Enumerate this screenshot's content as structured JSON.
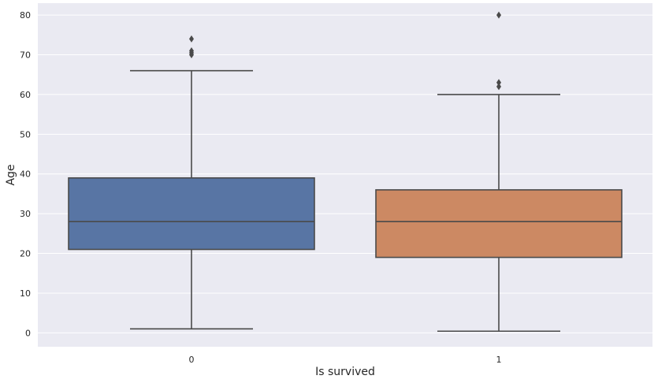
{
  "chart_data": {
    "type": "box",
    "title": "",
    "xlabel": "Is survived",
    "ylabel": "Age",
    "categories": [
      "0",
      "1"
    ],
    "ylim": [
      -3.5,
      83
    ],
    "yticks": [
      0,
      10,
      20,
      30,
      40,
      50,
      60,
      70,
      80
    ],
    "grid": true,
    "boxes": [
      {
        "category": "0",
        "whisker_low": 1,
        "q1": 21,
        "median": 28,
        "q3": 39,
        "whisker_high": 66,
        "outliers": [
          70,
          70.5,
          71,
          74
        ],
        "color": "#5875a4"
      },
      {
        "category": "1",
        "whisker_low": 0.42,
        "q1": 19,
        "median": 28,
        "q3": 36,
        "whisker_high": 60,
        "outliers": [
          62,
          63,
          80
        ],
        "color": "#cc8963"
      }
    ],
    "colors": {
      "background": "#eaeaf2",
      "grid": "#ffffff",
      "line": "#4a4a4a"
    }
  }
}
